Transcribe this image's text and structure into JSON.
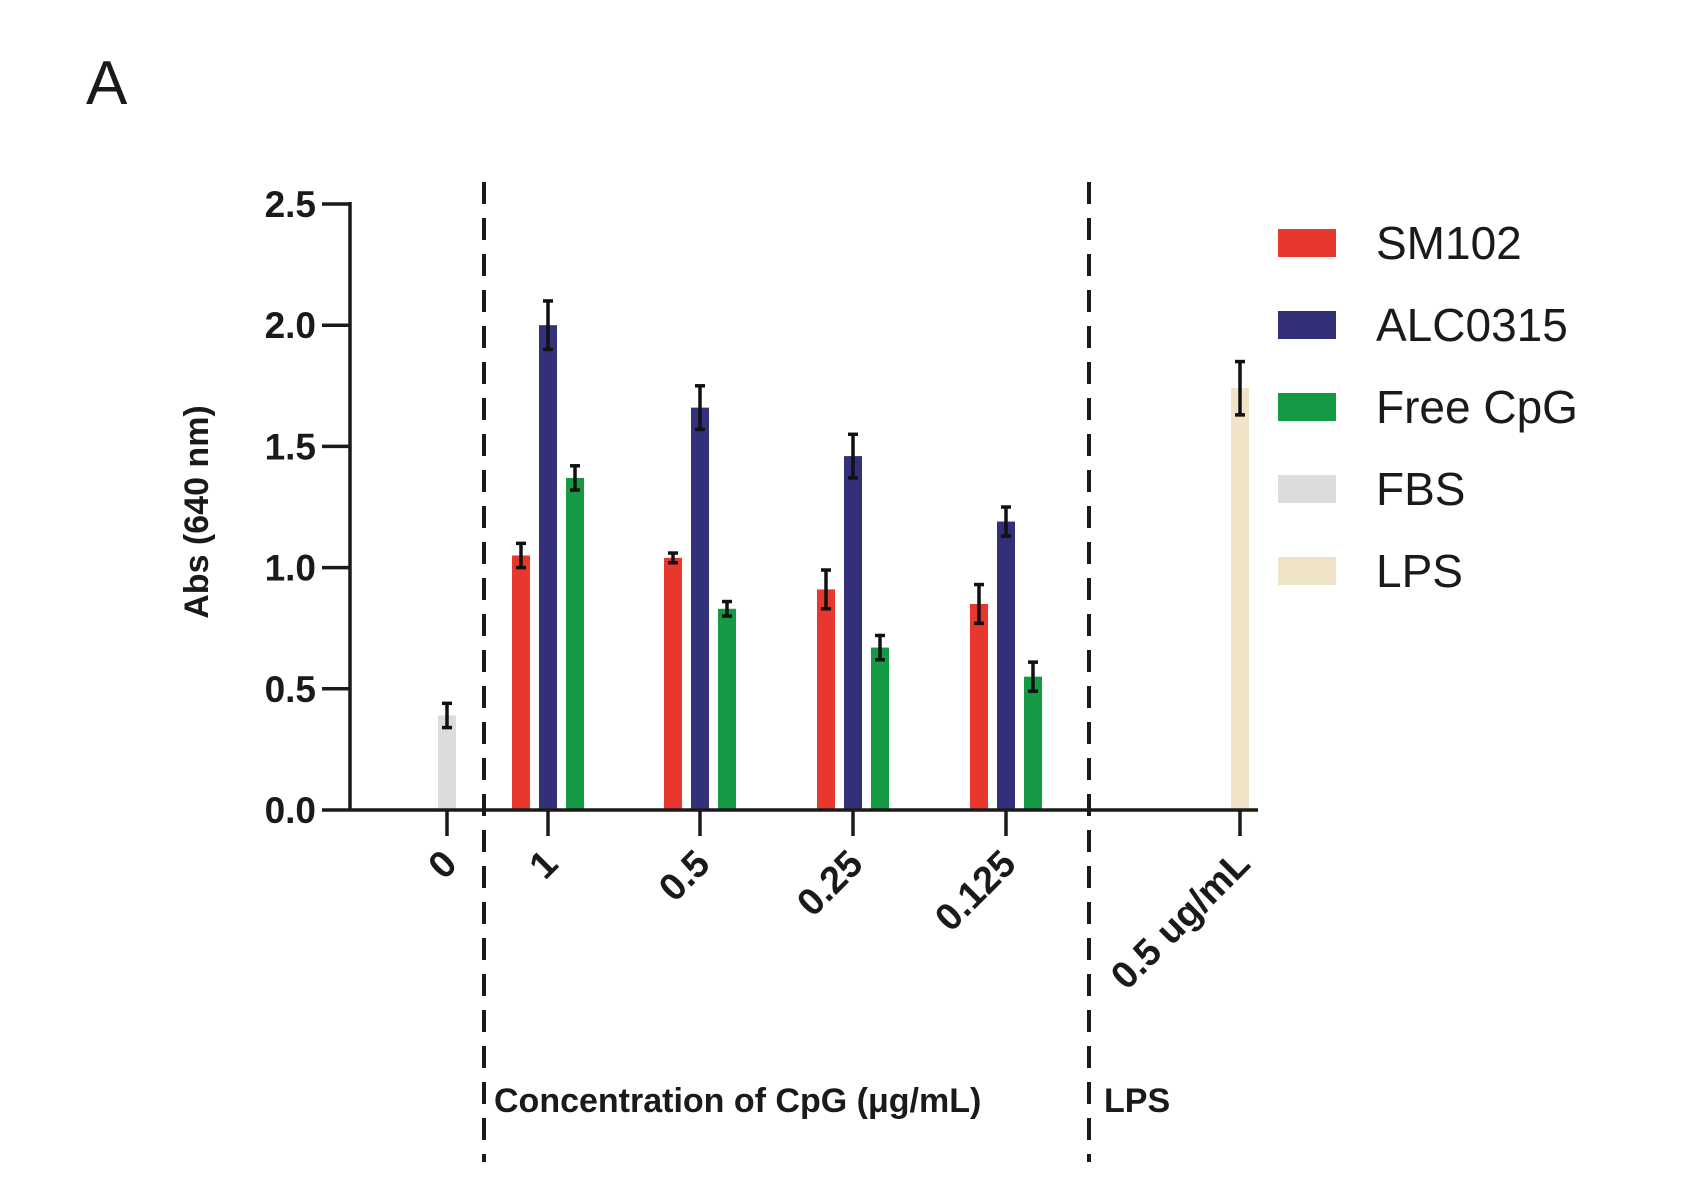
{
  "panel_label": "A",
  "chart_data": {
    "type": "bar",
    "ylabel": "Abs (640 nm)",
    "ylim": [
      0,
      2.5
    ],
    "yticks": [
      "0.0",
      "0.5",
      "1.0",
      "1.5",
      "2.0",
      "2.5"
    ],
    "categories": [
      "0",
      "1",
      "0.5",
      "0.25",
      "0.125",
      "0.5 ug/mL"
    ],
    "group_labels": [
      "Concentration of CpG (μg/mL)",
      "LPS"
    ],
    "legend_position": "right",
    "series": [
      {
        "name": "SM102",
        "color": "#e8382d",
        "values": [
          null,
          1.05,
          1.04,
          0.91,
          0.85,
          null
        ],
        "errors": [
          null,
          0.05,
          0.02,
          0.08,
          0.08,
          null
        ]
      },
      {
        "name": "ALC0315",
        "color": "#33307a",
        "values": [
          null,
          2.0,
          1.66,
          1.46,
          1.19,
          null
        ],
        "errors": [
          null,
          0.1,
          0.09,
          0.09,
          0.06,
          null
        ]
      },
      {
        "name": "Free CpG",
        "color": "#149a45",
        "values": [
          null,
          1.37,
          0.83,
          0.67,
          0.55,
          null
        ],
        "errors": [
          null,
          0.05,
          0.03,
          0.05,
          0.06,
          null
        ]
      },
      {
        "name": "FBS",
        "color": "#dcdcdc",
        "values": [
          0.39,
          null,
          null,
          null,
          null,
          null
        ],
        "errors": [
          0.05,
          null,
          null,
          null,
          null,
          null
        ]
      },
      {
        "name": "LPS",
        "color": "#efe4c8",
        "values": [
          null,
          null,
          null,
          null,
          null,
          1.74
        ],
        "errors": [
          null,
          null,
          null,
          null,
          null,
          0.11
        ]
      }
    ]
  }
}
